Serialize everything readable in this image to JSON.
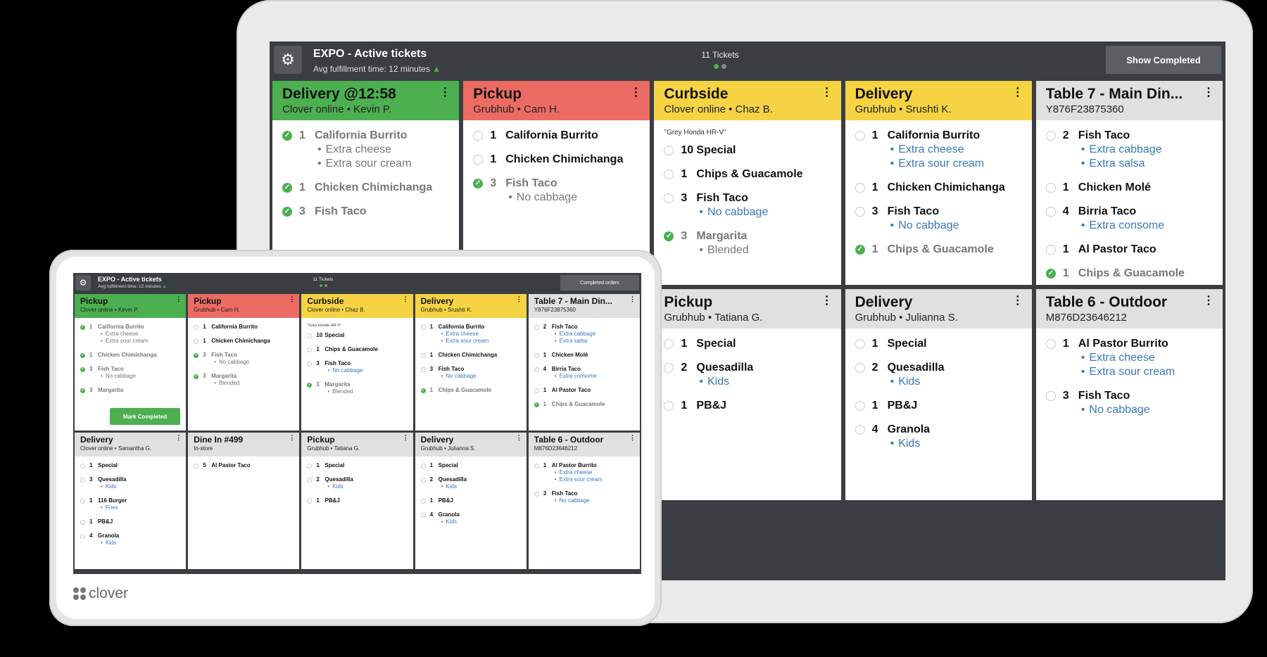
{
  "big": {
    "title": "EXPO - Active tickets",
    "subtitle": "Avg fulfillment time: 12 minutes",
    "tickets_count": "11 Tickets",
    "show_button": "Show Completed",
    "cards": [
      {
        "color": "green",
        "title": "Delivery @12:58",
        "sub": "Clover online •  Kevin P.",
        "items": [
          {
            "done": true,
            "qty": "1",
            "name": "California Burrito",
            "mods": [
              "Extra cheese",
              "Extra sour cream"
            ],
            "modStyle": "gray"
          },
          {
            "done": true,
            "qty": "1",
            "name": "Chicken Chimichanga"
          },
          {
            "done": true,
            "qty": "3",
            "name": "Fish Taco"
          }
        ]
      },
      {
        "color": "red",
        "title": "Pickup",
        "sub": "Grubhub •  Cam H.",
        "items": [
          {
            "qty": "1",
            "name": "California Burrito"
          },
          {
            "qty": "1",
            "name": "Chicken Chimichanga"
          },
          {
            "done": true,
            "qty": "3",
            "name": "Fish Taco",
            "mods": [
              "No cabbage"
            ],
            "modStyle": "gray"
          }
        ]
      },
      {
        "color": "yellow",
        "title": "Curbside",
        "sub": "Clover online •  Chaz B.",
        "note": "\"Grey Honda HR-V\"",
        "items": [
          {
            "qty": "10",
            "name": "Special"
          },
          {
            "qty": "1",
            "name": "Chips & Guacamole"
          },
          {
            "qty": "3",
            "name": "Fish Taco",
            "mods": [
              "No cabbage"
            ],
            "modStyle": "blue"
          },
          {
            "done": true,
            "qty": "3",
            "name": "Margarita",
            "mods": [
              "Blended"
            ],
            "modStyle": "gray"
          }
        ]
      },
      {
        "color": "yellow",
        "title": "Delivery",
        "sub": "Grubhub •  Srushti K.",
        "items": [
          {
            "qty": "1",
            "name": "California Burrito",
            "mods": [
              "Extra cheese",
              "Extra sour cream"
            ],
            "modStyle": "blue"
          },
          {
            "qty": "1",
            "name": "Chicken Chimichanga"
          },
          {
            "qty": "3",
            "name": "Fish Taco",
            "mods": [
              "No cabbage"
            ],
            "modStyle": "blue"
          },
          {
            "done": true,
            "qty": "1",
            "name": "Chips & Guacamole"
          }
        ]
      },
      {
        "color": "gray",
        "title": "Table 7 - Main Din...",
        "sub": "Y876F23875360",
        "items": [
          {
            "qty": "2",
            "name": "Fish Taco",
            "mods": [
              "Extra cabbage",
              "Extra salsa"
            ],
            "modStyle": "blue"
          },
          {
            "qty": "1",
            "name": "Chicken Molé"
          },
          {
            "qty": "4",
            "name": "Birria Taco",
            "mods": [
              "Extra consome"
            ],
            "modStyle": "blue"
          },
          {
            "qty": "1",
            "name": "Al Pastor Taco"
          },
          {
            "done": true,
            "qty": "1",
            "name": "Chips & Guacamole"
          }
        ]
      },
      {
        "color": "gray",
        "title": "",
        "sub": "",
        "items": []
      },
      {
        "color": "gray",
        "title": "",
        "sub": "",
        "items": []
      },
      {
        "color": "gray",
        "title": "Pickup",
        "sub": "Grubhub •  Tatiana G.",
        "items": [
          {
            "qty": "1",
            "name": "Special"
          },
          {
            "qty": "2",
            "name": "Quesadilla",
            "mods": [
              "Kids"
            ],
            "modStyle": "blue"
          },
          {
            "qty": "1",
            "name": "PB&J"
          }
        ]
      },
      {
        "color": "gray",
        "title": "Delivery",
        "sub": "Grubhub •  Julianna S.",
        "items": [
          {
            "qty": "1",
            "name": "Special"
          },
          {
            "qty": "2",
            "name": "Quesadilla",
            "mods": [
              "Kids"
            ],
            "modStyle": "blue"
          },
          {
            "qty": "1",
            "name": "PB&J"
          },
          {
            "qty": "4",
            "name": "Granola",
            "mods": [
              "Kids"
            ],
            "modStyle": "blue"
          }
        ]
      },
      {
        "color": "gray",
        "title": "Table 6 - Outdoor",
        "sub": "M876D23646212",
        "items": [
          {
            "qty": "1",
            "name": "Al Pastor Burrito",
            "mods": [
              "Extra cheese",
              "Extra sour cream"
            ],
            "modStyle": "blue"
          },
          {
            "qty": "3",
            "name": "Fish Taco",
            "mods": [
              "No cabbage"
            ],
            "modStyle": "blue"
          }
        ]
      }
    ]
  },
  "small": {
    "title": "EXPO - Active tickets",
    "subtitle": "Avg fulfillment time: 12 minutes",
    "tickets_count": "11 Tickets",
    "show_button": "Completed orders",
    "mark_completed": "Mark Completed",
    "cards": [
      {
        "color": "green",
        "title": "Pickup",
        "sub": "Clover online •  Kevin P.",
        "mark": true,
        "items": [
          {
            "done": true,
            "qty": "1",
            "name": "California Burrito",
            "mods": [
              "Extra cheese",
              "Extra sour cream"
            ],
            "modStyle": "gray"
          },
          {
            "done": true,
            "qty": "1",
            "name": "Chicken Chimichanga"
          },
          {
            "done": true,
            "qty": "3",
            "name": "Fish Taco",
            "mods": [
              "No cabbage"
            ],
            "modStyle": "gray"
          },
          {
            "done": true,
            "qty": "3",
            "name": "Margarita"
          }
        ]
      },
      {
        "color": "red",
        "title": "Pickup",
        "sub": "Grubhub •  Cam H.",
        "items": [
          {
            "qty": "1",
            "name": "California Burrito"
          },
          {
            "qty": "1",
            "name": "Chicken Chimichanga"
          },
          {
            "done": true,
            "qty": "3",
            "name": "Fish Taco",
            "mods": [
              "No cabbage"
            ],
            "modStyle": "gray"
          },
          {
            "done": true,
            "qty": "3",
            "name": "Margarita",
            "mods": [
              "Blended"
            ],
            "modStyle": "gray"
          }
        ]
      },
      {
        "color": "yellow",
        "title": "Curbside",
        "sub": "Clover online •  Chaz B.",
        "note": "\"Grey Honda HR-V\"",
        "items": [
          {
            "qty": "10",
            "name": "Special"
          },
          {
            "qty": "1",
            "name": "Chips & Guacamole"
          },
          {
            "qty": "3",
            "name": "Fish Taco",
            "mods": [
              "No cabbage"
            ],
            "modStyle": "blue"
          },
          {
            "done": true,
            "qty": "3",
            "name": "Margarita",
            "mods": [
              "Blended"
            ],
            "modStyle": "gray"
          }
        ]
      },
      {
        "color": "yellow",
        "title": "Delivery",
        "sub": "Grubhub •  Srushti K.",
        "items": [
          {
            "qty": "1",
            "name": "California Burrito",
            "mods": [
              "Extra cheese",
              "Extra sour cream"
            ],
            "modStyle": "blue"
          },
          {
            "qty": "1",
            "name": "Chicken Chimichanga"
          },
          {
            "qty": "3",
            "name": "Fish Taco",
            "mods": [
              "No cabbage"
            ],
            "modStyle": "blue"
          },
          {
            "done": true,
            "qty": "1",
            "name": "Chips & Guacamole"
          }
        ]
      },
      {
        "color": "gray",
        "title": "Table 7 - Main Din...",
        "sub": "Y876F23875360",
        "items": [
          {
            "qty": "2",
            "name": "Fish Taco",
            "mods": [
              "Extra cabbage",
              "Extra salsa"
            ],
            "modStyle": "blue"
          },
          {
            "qty": "1",
            "name": "Chicken Molé"
          },
          {
            "qty": "4",
            "name": "Birria Taco",
            "mods": [
              "Extra consome"
            ],
            "modStyle": "blue"
          },
          {
            "qty": "1",
            "name": "Al Pastor Taco"
          },
          {
            "done": true,
            "qty": "1",
            "name": "Chips & Guacamole"
          }
        ]
      },
      {
        "color": "gray",
        "title": "Delivery",
        "sub": "Clover online •  Samantha G.",
        "items": [
          {
            "qty": "1",
            "name": "Special"
          },
          {
            "qty": "3",
            "name": "Quesadilla",
            "mods": [
              "Kids"
            ],
            "modStyle": "blue"
          },
          {
            "qty": "1",
            "name": "116 Burger",
            "mods": [
              "Fries"
            ],
            "modStyle": "blue"
          },
          {
            "qty": "1",
            "name": "PB&J"
          },
          {
            "qty": "4",
            "name": "Granola",
            "mods": [
              "Kids"
            ],
            "modStyle": "blue"
          }
        ]
      },
      {
        "color": "gray",
        "title": "Dine In #499",
        "sub": "In-store",
        "items": [
          {
            "qty": "5",
            "name": "Al Pastor Taco"
          }
        ]
      },
      {
        "color": "gray",
        "title": "Pickup",
        "sub": "Grubhub •  Tatiana G.",
        "items": [
          {
            "qty": "1",
            "name": "Special"
          },
          {
            "qty": "2",
            "name": "Quesadilla",
            "mods": [
              "Kids"
            ],
            "modStyle": "blue"
          },
          {
            "qty": "1",
            "name": "PB&J"
          }
        ]
      },
      {
        "color": "gray",
        "title": "Delivery",
        "sub": "Grubhub •  Julianna S.",
        "items": [
          {
            "qty": "1",
            "name": "Special"
          },
          {
            "qty": "2",
            "name": "Quesadilla",
            "mods": [
              "Kids"
            ],
            "modStyle": "blue"
          },
          {
            "qty": "1",
            "name": "PB&J"
          },
          {
            "qty": "4",
            "name": "Granola",
            "mods": [
              "Kids"
            ],
            "modStyle": "blue"
          }
        ]
      },
      {
        "color": "gray",
        "title": "Table 6 - Outdoor",
        "sub": "M876D23646212",
        "items": [
          {
            "qty": "1",
            "name": "Al Pastor Burrito",
            "mods": [
              "Extra cheese",
              "Extra sour cream"
            ],
            "modStyle": "blue"
          },
          {
            "qty": "3",
            "name": "Fish Taco",
            "mods": [
              "No cabbage"
            ],
            "modStyle": "blue"
          }
        ]
      }
    ]
  },
  "brand": "clover",
  "colors": {
    "green": "#4caf50",
    "red": "#ec6b63",
    "yellow": "#f5d343",
    "header": "#3a3e42",
    "modifier_blue": "#3a78b8"
  }
}
